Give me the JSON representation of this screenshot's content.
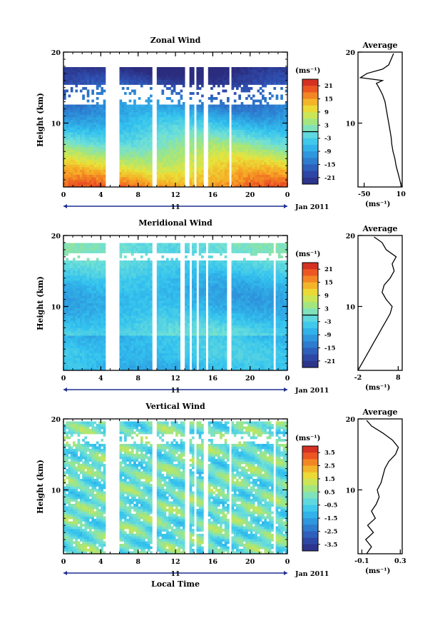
{
  "chart_data": [
    {
      "type": "heatmap",
      "title": "Zonal Wind",
      "ylabel": "Height (km)",
      "ylim": [
        1,
        20
      ],
      "y_ticks": [
        10,
        20
      ],
      "x_ticks": [
        "0",
        "4",
        "8",
        "12",
        "16",
        "20",
        "0"
      ],
      "xlim": [
        0,
        24
      ],
      "date_label": "11",
      "month_label": "Jan 2011",
      "colorbar": {
        "unit": "(ms⁻¹)",
        "ticks": [
          "21",
          "15",
          "9",
          "3",
          "-3",
          "-9",
          "-15",
          "-21"
        ],
        "range": [
          -24,
          24
        ],
        "zero_line": true
      },
      "field": {
        "kind": "zonal",
        "gaps_hours": [
          [
            4.6,
            6
          ],
          [
            9.6,
            10
          ],
          [
            13,
            13.4
          ],
          [
            14,
            14.3
          ],
          [
            15,
            15.4
          ],
          [
            17.7,
            18
          ]
        ],
        "top_km": 17.8
      },
      "profile": {
        "title": "Average",
        "xlabel": "(ms⁻¹)",
        "x_ticks": [
          "-50",
          "10"
        ],
        "x_tick_values": [
          -50,
          10
        ],
        "xlim": [
          -60,
          12
        ],
        "ylim": [
          1,
          20
        ],
        "y_ticks": [
          "10",
          "20"
        ],
        "points": [
          [
            11,
            1
          ],
          [
            8,
            2
          ],
          [
            5,
            3
          ],
          [
            2,
            4
          ],
          [
            0,
            5
          ],
          [
            -3,
            6
          ],
          [
            -5,
            7
          ],
          [
            -6,
            8
          ],
          [
            -8,
            9
          ],
          [
            -10,
            10
          ],
          [
            -12,
            11
          ],
          [
            -14,
            12
          ],
          [
            -16,
            13
          ],
          [
            -20,
            14
          ],
          [
            -26,
            15
          ],
          [
            -30,
            15.6
          ],
          [
            -20,
            16
          ],
          [
            -56,
            16.4
          ],
          [
            -45,
            17
          ],
          [
            -20,
            17.6
          ],
          [
            -10,
            18.2
          ],
          [
            -6,
            19
          ],
          [
            -2,
            19.8
          ]
        ]
      }
    },
    {
      "type": "heatmap",
      "title": "Meridional Wind",
      "ylabel": "Height (km)",
      "ylim": [
        1,
        20
      ],
      "y_ticks": [
        10,
        20
      ],
      "x_ticks": [
        "0",
        "4",
        "8",
        "12",
        "16",
        "20",
        "0"
      ],
      "xlim": [
        0,
        24
      ],
      "date_label": "11",
      "month_label": "Jan 2011",
      "colorbar": {
        "unit": "(ms⁻¹)",
        "ticks": [
          "21",
          "15",
          "9",
          "3",
          "-3",
          "-9",
          "-15",
          "-21"
        ],
        "range": [
          -24,
          24
        ],
        "zero_line": true
      },
      "field": {
        "kind": "meridional",
        "gaps_hours": [
          [
            4.6,
            6
          ],
          [
            9.6,
            10
          ],
          [
            12.6,
            13
          ],
          [
            13.5,
            13.8
          ],
          [
            14.3,
            14.6
          ],
          [
            15.2,
            15.6
          ],
          [
            17.5,
            17.9
          ],
          [
            22.5,
            22.8
          ]
        ],
        "top_km": 19
      },
      "profile": {
        "title": "Average",
        "xlabel": "(ms⁻¹)",
        "x_ticks": [
          "-2",
          "8"
        ],
        "x_tick_values": [
          -2,
          8
        ],
        "xlim": [
          -2,
          9
        ],
        "ylim": [
          1,
          20
        ],
        "y_ticks": [
          "10",
          "20"
        ],
        "points": [
          [
            -2,
            1
          ],
          [
            -1,
            2
          ],
          [
            0,
            3
          ],
          [
            1,
            4
          ],
          [
            2,
            5
          ],
          [
            3,
            6
          ],
          [
            4,
            7
          ],
          [
            5,
            8
          ],
          [
            6,
            9
          ],
          [
            6.5,
            10
          ],
          [
            5,
            11
          ],
          [
            4,
            12
          ],
          [
            4.5,
            13
          ],
          [
            6,
            14
          ],
          [
            7,
            15
          ],
          [
            6.5,
            16
          ],
          [
            7.5,
            17
          ],
          [
            5,
            18
          ],
          [
            4,
            19
          ],
          [
            2,
            19.8
          ]
        ]
      }
    },
    {
      "type": "heatmap",
      "title": "Vertical Wind",
      "xlabel": "Local Time",
      "ylabel": "Height (km)",
      "ylim": [
        1,
        20
      ],
      "y_ticks": [
        10,
        20
      ],
      "x_ticks": [
        "0",
        "4",
        "8",
        "12",
        "16",
        "20",
        "0"
      ],
      "xlim": [
        0,
        24
      ],
      "date_label": "11",
      "month_label": "Jan 2011",
      "colorbar": {
        "unit": "(ms⁻¹)",
        "ticks": [
          "3.5",
          "2.5",
          "1.5",
          "0.5",
          "-0.5",
          "-1.5",
          "-2.5",
          "-3.5"
        ],
        "range": [
          -4,
          4
        ],
        "zero_line": false
      },
      "field": {
        "kind": "vertical",
        "gaps_hours": [
          [
            4.6,
            6
          ],
          [
            9.6,
            10
          ],
          [
            13,
            13.4
          ],
          [
            14,
            14.3
          ],
          [
            15,
            15.4
          ],
          [
            17.7,
            18
          ],
          [
            22.5,
            22.8
          ]
        ],
        "top_km": 19.8
      },
      "profile": {
        "title": "Average",
        "xlabel": "(ms⁻¹)",
        "x_ticks": [
          "-0.1",
          "0.3"
        ],
        "x_tick_values": [
          -0.1,
          0.3
        ],
        "xlim": [
          -0.14,
          0.32
        ],
        "ylim": [
          1,
          20
        ],
        "y_ticks": [
          "10",
          "20"
        ],
        "points": [
          [
            -0.05,
            1
          ],
          [
            0,
            2
          ],
          [
            -0.06,
            3
          ],
          [
            0.02,
            4
          ],
          [
            -0.04,
            5
          ],
          [
            0.04,
            6
          ],
          [
            0.0,
            7
          ],
          [
            0.05,
            8
          ],
          [
            0.08,
            9
          ],
          [
            0.06,
            10
          ],
          [
            0.1,
            11
          ],
          [
            0.12,
            12
          ],
          [
            0.14,
            13
          ],
          [
            0.18,
            14
          ],
          [
            0.25,
            15
          ],
          [
            0.28,
            16
          ],
          [
            0.22,
            17
          ],
          [
            0.12,
            18
          ],
          [
            0.0,
            19
          ],
          [
            -0.05,
            19.8
          ]
        ]
      }
    }
  ]
}
